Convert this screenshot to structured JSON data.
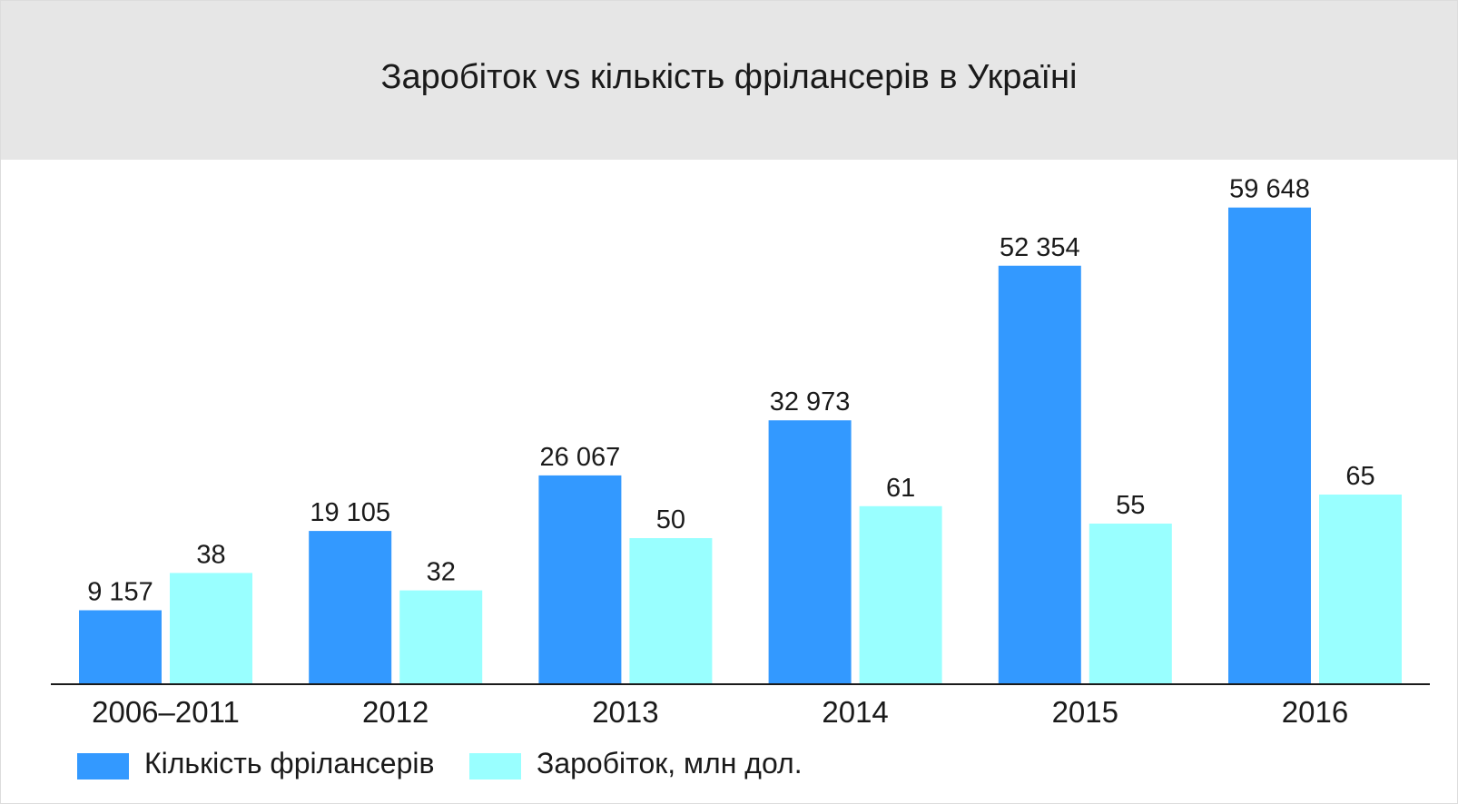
{
  "chart_data": {
    "type": "bar",
    "title": "Заробіток vs кількість фрілансерів в Україні",
    "categories": [
      "2006–2011",
      "2012",
      "2013",
      "2014",
      "2015",
      "2016"
    ],
    "series": [
      {
        "name": "Кількість фрілансерів",
        "values": [
          9157,
          19105,
          26067,
          32973,
          52354,
          59648
        ],
        "labels": [
          "9 157",
          "19 105",
          "26 067",
          "32 973",
          "52 354",
          "59 648"
        ],
        "color": "#3399ff"
      },
      {
        "name": "Заробіток, млн дол.",
        "values": [
          38,
          32,
          50,
          61,
          55,
          65
        ],
        "labels": [
          "38",
          "32",
          "50",
          "61",
          "55",
          "65"
        ],
        "color": "#99ffff"
      }
    ],
    "xlabel": "",
    "ylabel": "",
    "grid": false,
    "legend_position": "bottom-left"
  }
}
